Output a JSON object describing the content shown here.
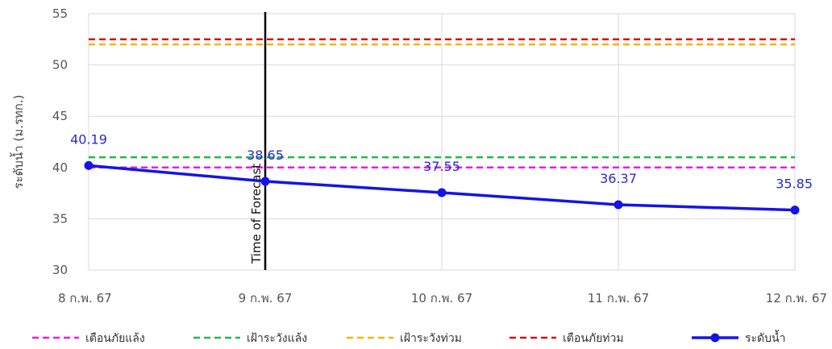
{
  "chart_data": {
    "type": "line",
    "ylabel": "ระดับน้ำ (ม.รทก.)",
    "categories": [
      "8 ก.พ. 67",
      "9 ก.พ. 67",
      "10 ก.พ. 67",
      "11 ก.พ. 67",
      "12 ก.พ. 67"
    ],
    "ylim": [
      30,
      55
    ],
    "yticks": [
      30,
      35,
      40,
      45,
      50,
      55
    ],
    "grid": true,
    "legend_position": "bottom",
    "forecast_marker": {
      "label": "Time of Forecast",
      "category": "9 ก.พ. 67"
    },
    "thresholds": [
      {
        "name": "เตือนภัยแล้ง",
        "value": 40.0,
        "color": "#e61ee6"
      },
      {
        "name": "เฝ้าระวังแล้ง",
        "value": 41.0,
        "color": "#22b84c"
      },
      {
        "name": "เฝ้าระวังท่วม",
        "value": 52.0,
        "color": "#f5b400"
      },
      {
        "name": "เตือนภัยท่วม",
        "value": 52.5,
        "color": "#d41414"
      }
    ],
    "series": [
      {
        "name": "ระดับน้ำ",
        "values": [
          40.19,
          38.65,
          37.55,
          36.37,
          35.85
        ],
        "color": "#1414e6"
      }
    ]
  }
}
